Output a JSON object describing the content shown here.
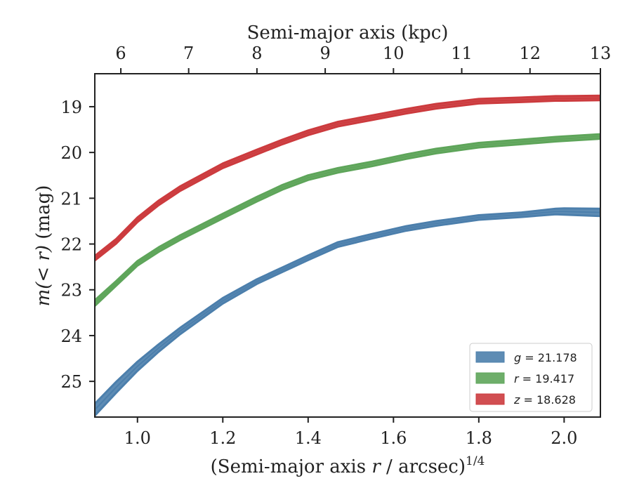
{
  "chart_data": {
    "type": "area",
    "xlabel": "(Semi-major axis r / arcsec)^{1/4}",
    "xlabel_parts": {
      "pre": "(Semi-major axis ",
      "var": "r",
      "post": " / arcsec)",
      "sup": "1/4"
    },
    "ylabel": "m(< r) (mag)",
    "ylabel_parts": {
      "var": "m(< r)",
      "post": " (mag)"
    },
    "top_xlabel": "Semi-major axis (kpc)",
    "xlim": [
      0.9,
      2.085
    ],
    "ylim": [
      25.78,
      18.28
    ],
    "y_inverted": true,
    "x_ticks": [
      1.0,
      1.2,
      1.4,
      1.6,
      1.8,
      2.0
    ],
    "x_tick_labels": [
      "1.0",
      "1.2",
      "1.4",
      "1.6",
      "1.8",
      "2.0"
    ],
    "y_ticks": [
      19,
      20,
      21,
      22,
      23,
      24,
      25
    ],
    "y_tick_labels": [
      "19",
      "20",
      "21",
      "22",
      "23",
      "24",
      "25"
    ],
    "top_ticks": [
      {
        "label": "6",
        "x": 0.961
      },
      {
        "label": "7",
        "x": 1.12
      },
      {
        "label": "8",
        "x": 1.28
      },
      {
        "label": "9",
        "x": 1.44
      },
      {
        "label": "10",
        "x": 1.6
      },
      {
        "label": "11",
        "x": 1.76
      },
      {
        "label": "12",
        "x": 1.92
      },
      {
        "label": "13",
        "x": 2.085
      }
    ],
    "legend_position": "lower-right",
    "series": [
      {
        "name": "g = 21.178",
        "name_parts": {
          "var": "g",
          "val": " = 21.178"
        },
        "color": "#4c7fac",
        "x": [
          0.9,
          0.95,
          1.0,
          1.05,
          1.1,
          1.2,
          1.28,
          1.34,
          1.4,
          1.47,
          1.55,
          1.63,
          1.7,
          1.8,
          1.9,
          1.98,
          2.0,
          2.085
        ],
        "y": [
          25.62,
          25.13,
          24.67,
          24.27,
          23.9,
          23.24,
          22.82,
          22.56,
          22.3,
          22.01,
          21.83,
          21.66,
          21.55,
          21.42,
          21.36,
          21.29,
          21.29,
          21.31
        ],
        "band": [
          0.13,
          0.12,
          0.1,
          0.08,
          0.07,
          0.06,
          0.05,
          0.05,
          0.05,
          0.05,
          0.05,
          0.05,
          0.05,
          0.05,
          0.05,
          0.06,
          0.07,
          0.08
        ]
      },
      {
        "name": "r = 19.417",
        "name_parts": {
          "var": "r",
          "val": " = 19.417"
        },
        "color": "#5ea55a",
        "x": [
          0.9,
          0.95,
          1.0,
          1.05,
          1.1,
          1.2,
          1.28,
          1.34,
          1.4,
          1.47,
          1.55,
          1.63,
          1.7,
          1.8,
          1.9,
          1.98,
          2.0,
          2.085
        ],
        "y": [
          23.29,
          22.86,
          22.42,
          22.12,
          21.86,
          21.39,
          21.02,
          20.76,
          20.55,
          20.39,
          20.25,
          20.09,
          19.97,
          19.84,
          19.77,
          19.71,
          19.7,
          19.65
        ],
        "band": [
          0.06,
          0.05,
          0.05,
          0.05,
          0.05,
          0.05,
          0.05,
          0.05,
          0.05,
          0.05,
          0.05,
          0.05,
          0.05,
          0.05,
          0.05,
          0.05,
          0.05,
          0.05
        ]
      },
      {
        "name": "z = 18.628",
        "name_parts": {
          "var": "z",
          "val": " = 18.628"
        },
        "color": "#cc3b3e",
        "x": [
          0.9,
          0.95,
          1.0,
          1.05,
          1.1,
          1.2,
          1.28,
          1.34,
          1.4,
          1.47,
          1.55,
          1.63,
          1.7,
          1.8,
          1.9,
          1.98,
          2.0,
          2.085
        ],
        "y": [
          22.31,
          21.94,
          21.47,
          21.1,
          20.79,
          20.29,
          19.99,
          19.77,
          19.57,
          19.38,
          19.24,
          19.1,
          18.99,
          18.88,
          18.85,
          18.82,
          18.82,
          18.81
        ],
        "band": [
          0.05,
          0.05,
          0.05,
          0.05,
          0.05,
          0.05,
          0.05,
          0.05,
          0.05,
          0.05,
          0.05,
          0.05,
          0.05,
          0.05,
          0.05,
          0.05,
          0.05,
          0.05
        ]
      }
    ]
  }
}
